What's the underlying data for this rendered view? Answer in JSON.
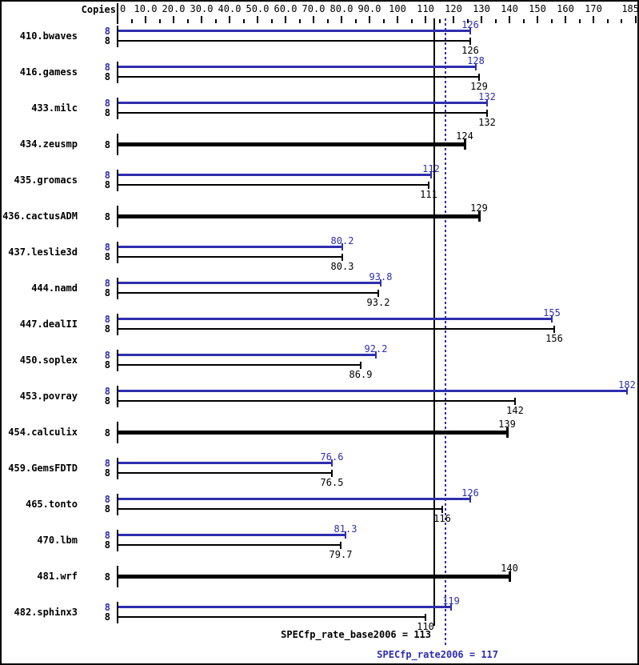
{
  "header": {
    "copies_label": "Copies"
  },
  "colors": {
    "peak": "#2e2eae",
    "base": "#000000",
    "background": "#ffffff"
  },
  "chart_data": {
    "type": "bar",
    "orientation": "horizontal",
    "title": "",
    "xlabel": "",
    "ylabel": "",
    "xlim": [
      0,
      185
    ],
    "grid": false,
    "axis_ticks": [
      {
        "v": 0,
        "label": "0",
        "align": "left"
      },
      {
        "v": 10,
        "label": "10.0",
        "align": "center"
      },
      {
        "v": 20,
        "label": "20.0",
        "align": "center"
      },
      {
        "v": 30,
        "label": "30.0",
        "align": "center"
      },
      {
        "v": 40,
        "label": "40.0",
        "align": "center"
      },
      {
        "v": 50,
        "label": "50.0",
        "align": "center"
      },
      {
        "v": 60,
        "label": "60.0",
        "align": "center"
      },
      {
        "v": 70,
        "label": "70.0",
        "align": "center"
      },
      {
        "v": 80,
        "label": "80.0",
        "align": "center"
      },
      {
        "v": 90,
        "label": "90.0",
        "align": "center"
      },
      {
        "v": 100,
        "label": "100",
        "align": "center"
      },
      {
        "v": 110,
        "label": "110",
        "align": "center"
      },
      {
        "v": 120,
        "label": "120",
        "align": "center"
      },
      {
        "v": 130,
        "label": "130",
        "align": "center"
      },
      {
        "v": 140,
        "label": "140",
        "align": "center"
      },
      {
        "v": 150,
        "label": "150",
        "align": "center"
      },
      {
        "v": 160,
        "label": "160",
        "align": "center"
      },
      {
        "v": 170,
        "label": "170",
        "align": "center"
      },
      {
        "v": 185,
        "label": "185",
        "align": "right"
      }
    ],
    "minor_ticks": [
      5,
      15,
      25,
      35,
      45,
      55,
      65,
      75,
      85,
      95,
      105,
      115,
      125,
      135,
      145,
      155,
      165,
      175,
      180
    ],
    "benchmarks": [
      {
        "name": "410.bwaves",
        "copies": 8,
        "single": false,
        "peak": 126,
        "peak_label": "126",
        "base": 126,
        "base_label": "126"
      },
      {
        "name": "416.gamess",
        "copies": 8,
        "single": false,
        "peak": 128,
        "peak_label": "128",
        "base": 129,
        "base_label": "129"
      },
      {
        "name": "433.milc",
        "copies": 8,
        "single": false,
        "peak": 132,
        "peak_label": "132",
        "base": 132,
        "base_label": "132"
      },
      {
        "name": "434.zeusmp",
        "copies": 8,
        "single": true,
        "peak": null,
        "peak_label": "",
        "base": 124,
        "base_label": "124"
      },
      {
        "name": "435.gromacs",
        "copies": 8,
        "single": false,
        "peak": 112,
        "peak_label": "112",
        "base": 111,
        "base_label": "111"
      },
      {
        "name": "436.cactusADM",
        "copies": 8,
        "single": true,
        "peak": null,
        "peak_label": "",
        "base": 129,
        "base_label": "129"
      },
      {
        "name": "437.leslie3d",
        "copies": 8,
        "single": false,
        "peak": 80.2,
        "peak_label": "80.2",
        "base": 80.3,
        "base_label": "80.3"
      },
      {
        "name": "444.namd",
        "copies": 8,
        "single": false,
        "peak": 93.8,
        "peak_label": "93.8",
        "base": 93.2,
        "base_label": "93.2"
      },
      {
        "name": "447.dealII",
        "copies": 8,
        "single": false,
        "peak": 155,
        "peak_label": "155",
        "base": 156,
        "base_label": "156"
      },
      {
        "name": "450.soplex",
        "copies": 8,
        "single": false,
        "peak": 92.2,
        "peak_label": "92.2",
        "base": 86.9,
        "base_label": "86.9"
      },
      {
        "name": "453.povray",
        "copies": 8,
        "single": false,
        "peak": 182,
        "peak_label": "182",
        "base": 142,
        "base_label": "142"
      },
      {
        "name": "454.calculix",
        "copies": 8,
        "single": true,
        "peak": null,
        "peak_label": "",
        "base": 139,
        "base_label": "139"
      },
      {
        "name": "459.GemsFDTD",
        "copies": 8,
        "single": false,
        "peak": 76.6,
        "peak_label": "76.6",
        "base": 76.5,
        "base_label": "76.5"
      },
      {
        "name": "465.tonto",
        "copies": 8,
        "single": false,
        "peak": 126,
        "peak_label": "126",
        "base": 116,
        "base_label": "116"
      },
      {
        "name": "470.lbm",
        "copies": 8,
        "single": false,
        "peak": 81.3,
        "peak_label": "81.3",
        "base": 79.7,
        "base_label": "79.7"
      },
      {
        "name": "481.wrf",
        "copies": 8,
        "single": true,
        "peak": null,
        "peak_label": "",
        "base": 140,
        "base_label": "140"
      },
      {
        "name": "482.sphinx3",
        "copies": 8,
        "single": false,
        "peak": 119,
        "peak_label": "119",
        "base": 110,
        "base_label": "110"
      }
    ],
    "reference_lines": [
      {
        "name": "SPECfp_rate_base2006",
        "value": 113,
        "style": "solid",
        "color": "#000000"
      },
      {
        "name": "SPECfp_rate2006",
        "value": 117,
        "style": "dotted",
        "color": "#2e2eae"
      }
    ],
    "footer_base": "SPECfp_rate_base2006 = 113",
    "footer_peak": "SPECfp_rate2006 = 117"
  }
}
